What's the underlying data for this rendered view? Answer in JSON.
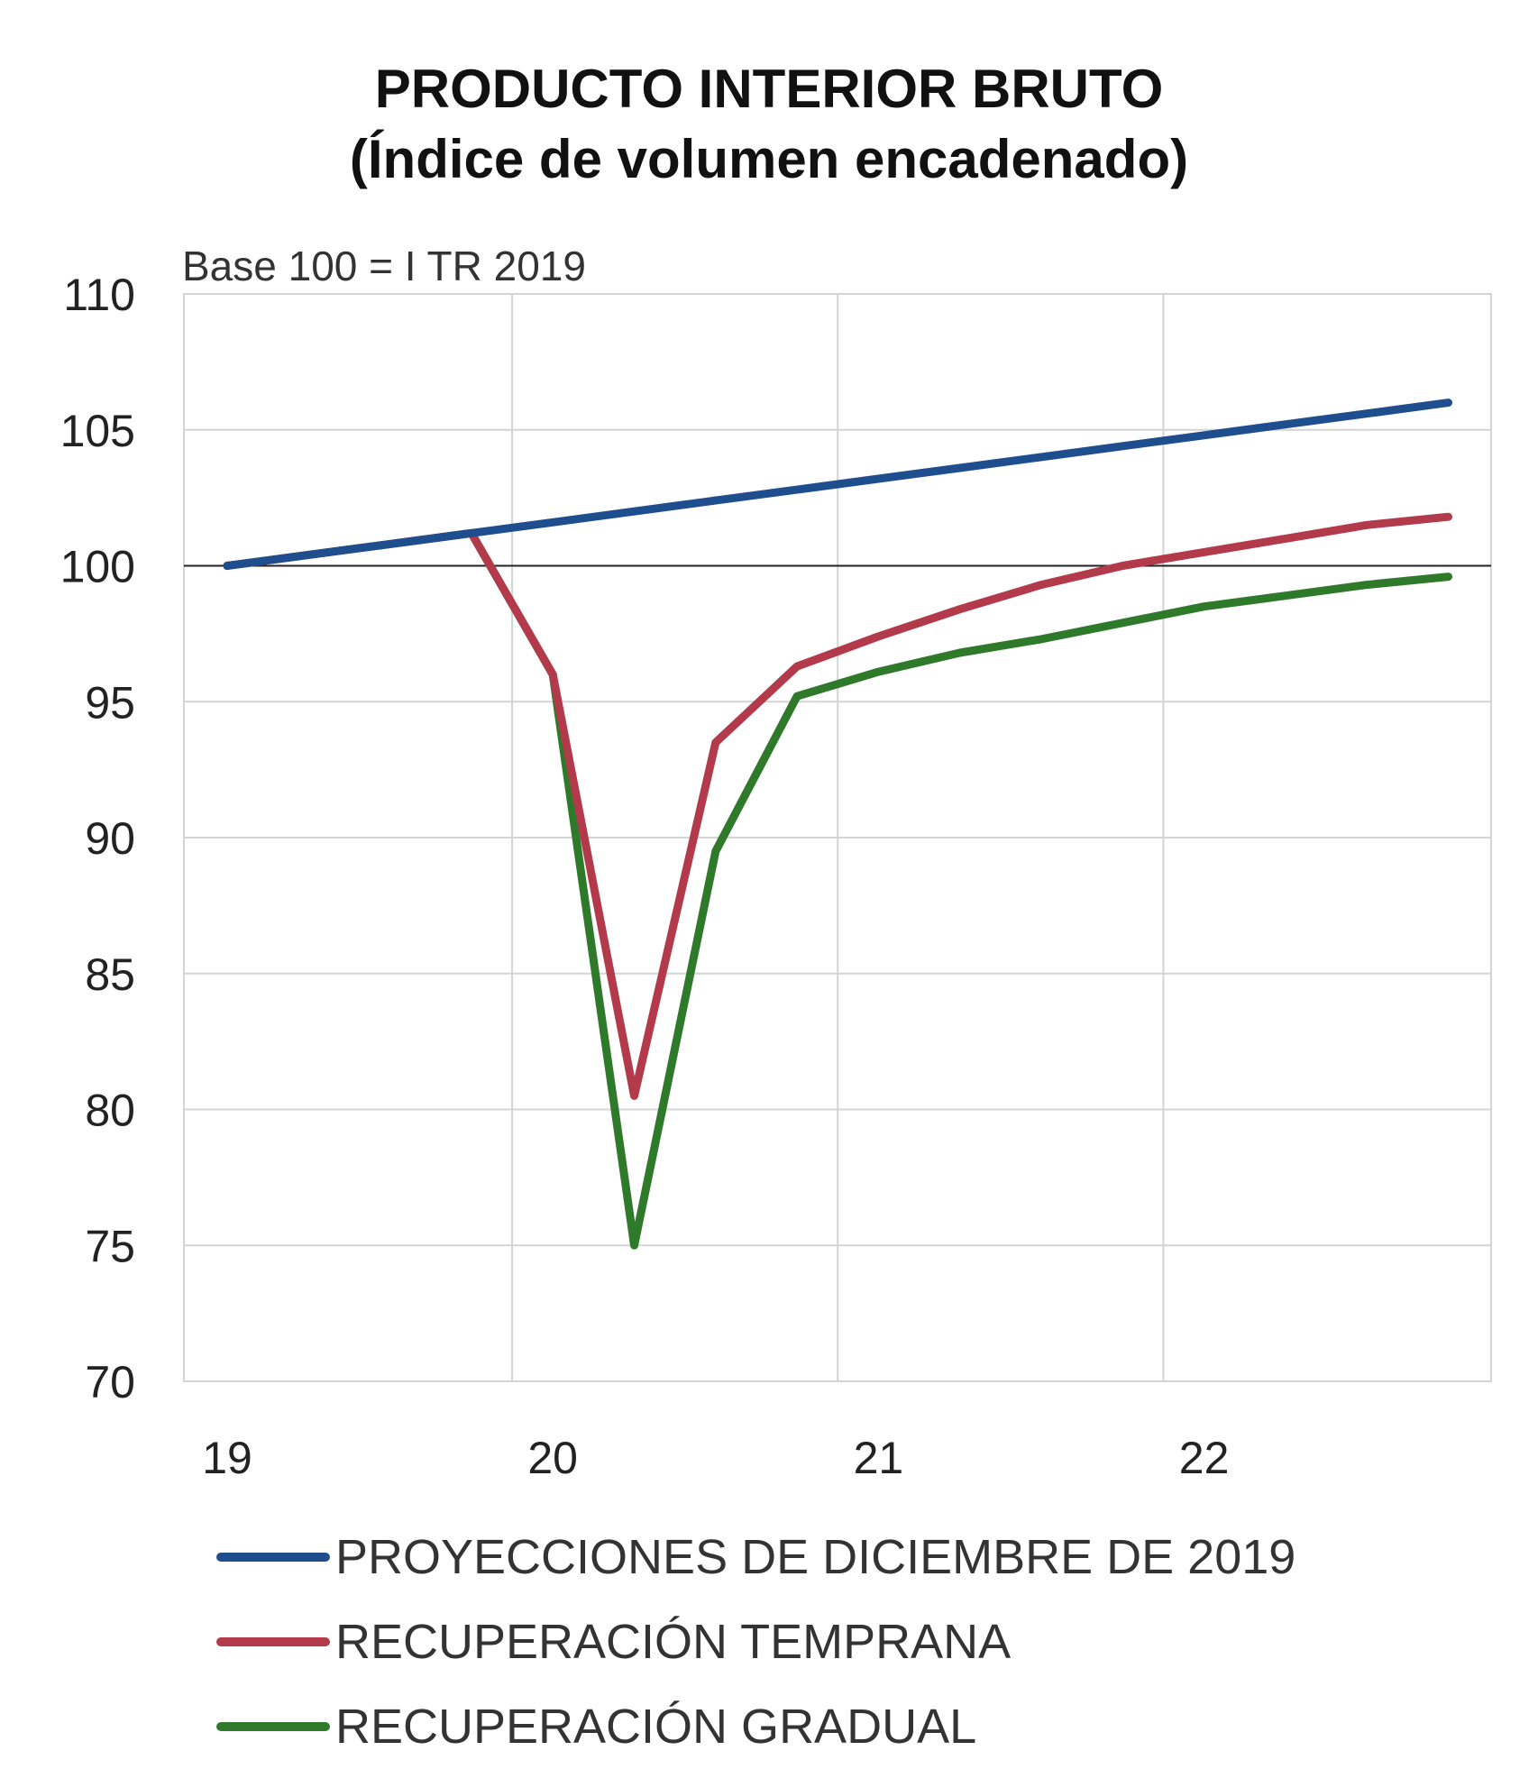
{
  "chart_data": {
    "type": "line",
    "title_line1": "PRODUCTO INTERIOR BRUTO",
    "title_line2": "(Índice de volumen encadenado)",
    "note": "Base 100 = I TR 2019",
    "x_tick_labels": [
      "19",
      "20",
      "21",
      "22"
    ],
    "x": [
      "2019-Q1",
      "2019-Q2",
      "2019-Q3",
      "2019-Q4",
      "2020-Q1",
      "2020-Q2",
      "2020-Q3",
      "2020-Q4",
      "2021-Q1",
      "2021-Q2",
      "2021-Q3",
      "2021-Q4",
      "2022-Q1",
      "2022-Q2",
      "2022-Q3",
      "2022-Q4"
    ],
    "ylim": [
      70,
      110
    ],
    "y_ticks": [
      70,
      75,
      80,
      85,
      90,
      95,
      100,
      105,
      110
    ],
    "reference_line": 100,
    "grid": true,
    "legend_position": "bottom",
    "series": [
      {
        "name": "PROYECCIONES DE DICIEMBRE DE 2019",
        "color": "#1f4e8f",
        "values": [
          100.0,
          100.4,
          100.8,
          101.2,
          101.6,
          102.0,
          102.4,
          102.8,
          103.2,
          103.6,
          104.0,
          104.4,
          104.8,
          105.2,
          105.6,
          106.0
        ]
      },
      {
        "name": "RECUPERACIÓN TEMPRANA",
        "color": "#b23a4a",
        "values": [
          100.0,
          100.4,
          100.8,
          101.2,
          96.0,
          80.5,
          93.5,
          96.3,
          97.4,
          98.4,
          99.3,
          100.0,
          100.5,
          101.0,
          101.5,
          101.8
        ]
      },
      {
        "name": "RECUPERACIÓN GRADUAL",
        "color": "#2f7a2a",
        "values": [
          100.0,
          100.4,
          100.8,
          101.2,
          96.0,
          75.0,
          89.5,
          95.2,
          96.1,
          96.8,
          97.3,
          97.9,
          98.5,
          98.9,
          99.3,
          99.6
        ]
      }
    ]
  }
}
